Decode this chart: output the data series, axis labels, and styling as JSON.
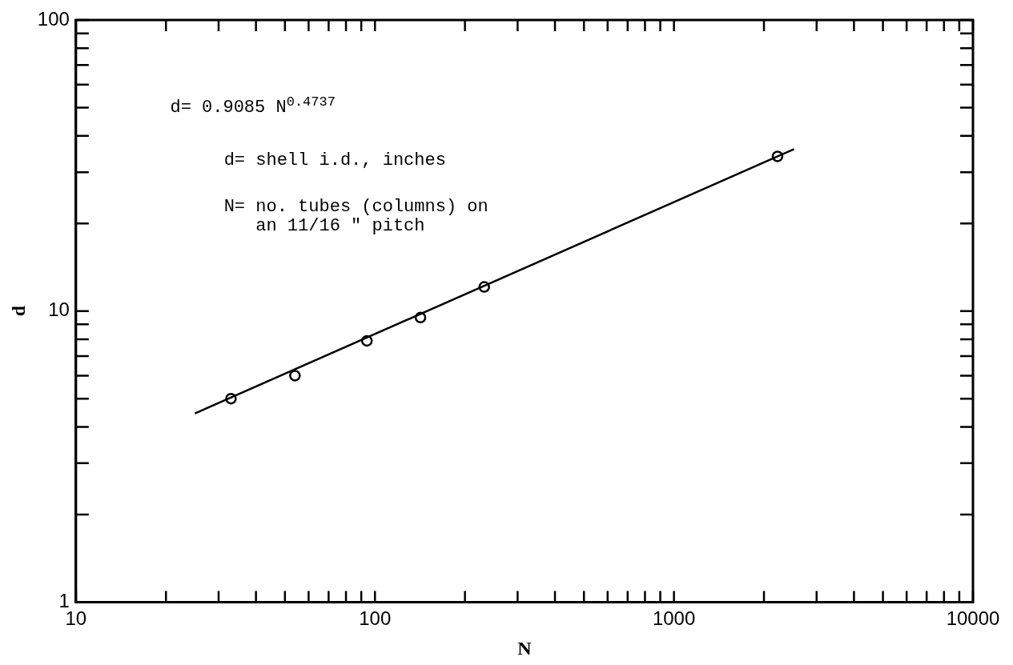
{
  "chart_data": {
    "type": "scatter",
    "xlabel": "N",
    "ylabel": "d",
    "log": "xy",
    "grid": false,
    "legend": false,
    "xlim": [
      10,
      10000
    ],
    "ylim": [
      1,
      100
    ],
    "xticks": [
      10,
      {
        "value": 20,
        "label": null
      },
      {
        "value": 30,
        "label": null
      },
      {
        "value": 40,
        "label": null
      },
      {
        "value": 50,
        "label": null
      },
      {
        "value": 60,
        "label": null
      },
      {
        "value": 70,
        "label": null
      },
      {
        "value": 80,
        "label": null
      },
      {
        "value": 90,
        "label": null
      },
      100,
      {
        "value": 200,
        "label": null
      },
      {
        "value": 300,
        "label": null
      },
      {
        "value": 400,
        "label": null
      },
      {
        "value": 500,
        "label": null
      },
      {
        "value": 600,
        "label": null
      },
      {
        "value": 700,
        "label": null
      },
      {
        "value": 800,
        "label": null
      },
      {
        "value": 900,
        "label": null
      },
      1000,
      {
        "value": 2000,
        "label": null
      },
      {
        "value": 3000,
        "label": null
      },
      {
        "value": 4000,
        "label": null
      },
      {
        "value": 5000,
        "label": null
      },
      {
        "value": 6000,
        "label": null
      },
      {
        "value": 7000,
        "label": null
      },
      {
        "value": 8000,
        "label": null
      },
      {
        "value": 9000,
        "label": null
      },
      10000
    ],
    "yticks": [
      1,
      {
        "value": 2,
        "label": null
      },
      {
        "value": 3,
        "label": null
      },
      {
        "value": 4,
        "label": null
      },
      {
        "value": 5,
        "label": null
      },
      {
        "value": 6,
        "label": null
      },
      {
        "value": 7,
        "label": null
      },
      {
        "value": 8,
        "label": null
      },
      {
        "value": 9,
        "label": null
      },
      10,
      {
        "value": 20,
        "label": null
      },
      {
        "value": 30,
        "label": null
      },
      {
        "value": 40,
        "label": null
      },
      {
        "value": 50,
        "label": null
      },
      {
        "value": 60,
        "label": null
      },
      {
        "value": 70,
        "label": null
      },
      {
        "value": 80,
        "label": null
      },
      {
        "value": 90,
        "label": null
      },
      100
    ],
    "series": [
      {
        "color": "#000000",
        "marker": "circle",
        "x": [
          33,
          54,
          94,
          142,
          232,
          2220
        ],
        "values": [
          5.0,
          6.0,
          7.9,
          9.5,
          12.1,
          34
        ]
      },
      {
        "type": "line",
        "color": "#000000",
        "marker": "none",
        "line_style": "solid",
        "x": [
          25,
          2520
        ],
        "values": [
          4.45,
          36
        ]
      }
    ],
    "annotations": [
      "d= 0.9085 N$^{0.4737}$",
      "d= shell i.d., inches",
      "N= no. tubes (columns) on\nan 11/16 \" pitch"
    ]
  }
}
